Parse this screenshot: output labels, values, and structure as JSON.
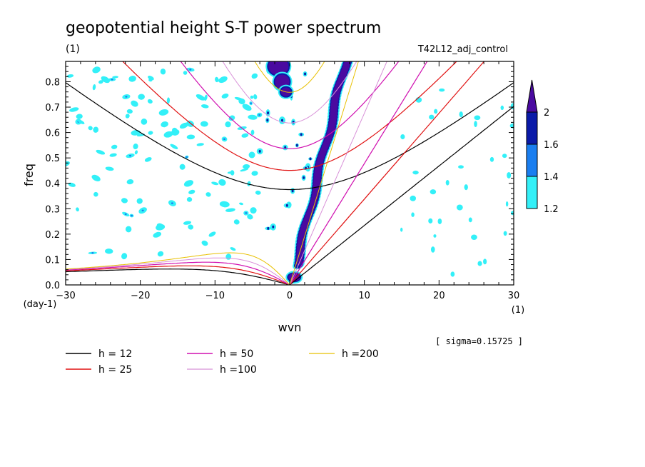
{
  "header": {
    "title": "geopotential height S-T power spectrum",
    "units": "(1)",
    "experiment": "T42L12_adj_control"
  },
  "footer": {
    "sigma_note": "[ sigma=0.15725 ]"
  },
  "chart_data": {
    "type": "heatmap",
    "title": "geopotential height S-T power spectrum",
    "xlabel": "wvn",
    "ylabel": "freq",
    "x_units": "(1)",
    "y_units": "(day-1)",
    "xlim": [
      -30,
      30
    ],
    "ylim": [
      0,
      0.88
    ],
    "x_ticks": [
      -30,
      -20,
      -10,
      0,
      10,
      20,
      30
    ],
    "y_ticks": [
      0.0,
      0.1,
      0.2,
      0.3,
      0.4,
      0.5,
      0.6,
      0.7,
      0.8
    ],
    "x_tick_labels": [
      "−30",
      "−20",
      "−10",
      "0",
      "10",
      "20",
      "30"
    ],
    "y_tick_labels": [
      "0.0",
      "0.1",
      "0.2",
      "0.3",
      "0.4",
      "0.5",
      "0.6",
      "0.7",
      "0.8"
    ],
    "colorbar": {
      "levels": [
        "1.2",
        "1.4",
        "1.6",
        "2"
      ],
      "colors": [
        "#33f0f8",
        "#1a7ef0",
        "#0a1aa8",
        "#4a0aa0"
      ]
    },
    "dispersion_curves": [
      {
        "name": "h = 12",
        "color": "#000000",
        "equiv_depth": 12
      },
      {
        "name": "h = 25",
        "color": "#e01010",
        "equiv_depth": 25
      },
      {
        "name": "h = 50",
        "color": "#d010b0",
        "equiv_depth": 50
      },
      {
        "name": "h =100",
        "color": "#d890d8",
        "equiv_depth": 100
      },
      {
        "name": "h =200",
        "color": "#e8c000",
        "equiv_depth": 200
      }
    ]
  }
}
